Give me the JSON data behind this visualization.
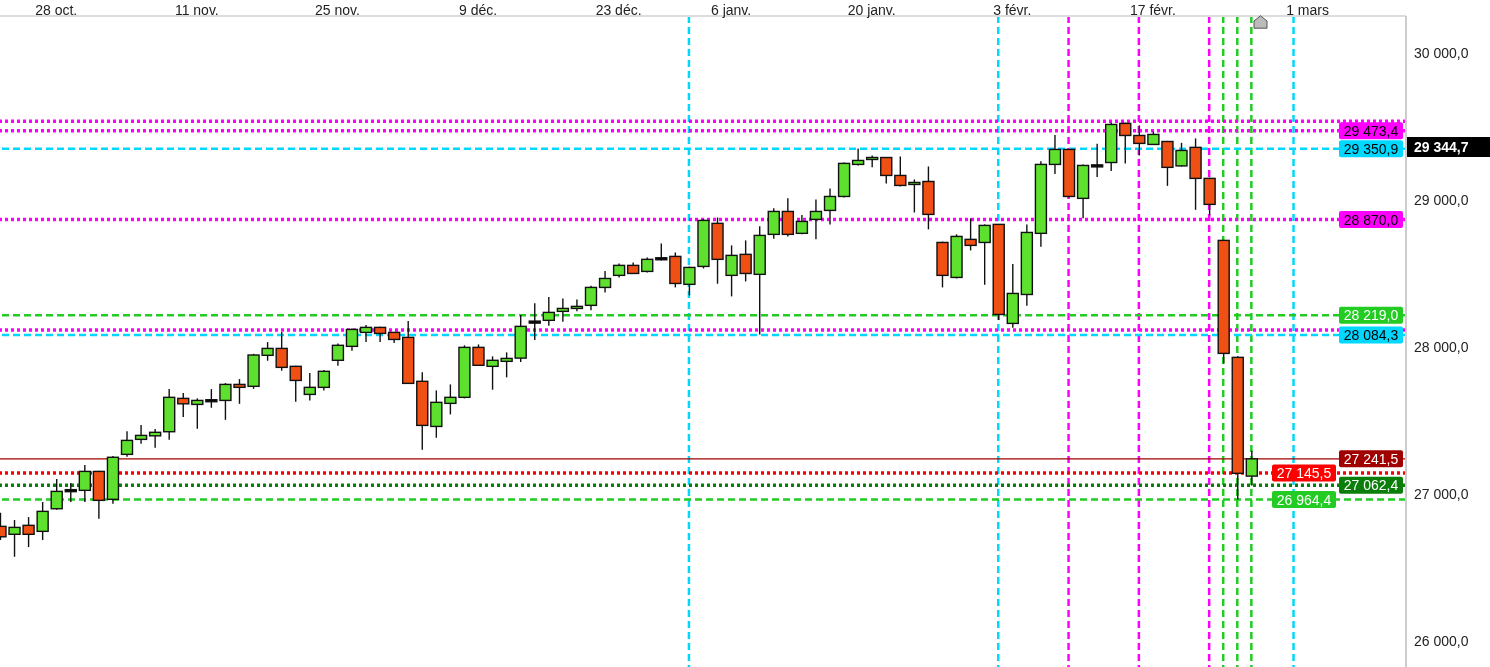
{
  "chart_data": {
    "type": "candlestick",
    "categories": [
      null,
      null,
      null,
      null,
      "28 oct.",
      null,
      null,
      null,
      null,
      null,
      null,
      null,
      null,
      null,
      "11 nov.",
      null,
      null,
      null,
      null,
      null,
      null,
      null,
      null,
      null,
      "25 nov.",
      null,
      null,
      null,
      null,
      null,
      null,
      null,
      null,
      null,
      "9 déc.",
      null,
      null,
      null,
      null,
      null,
      null,
      null,
      null,
      null,
      "23 déc.",
      null,
      null,
      null,
      null,
      null,
      null,
      null,
      "6 janv.",
      null,
      null,
      null,
      null,
      null,
      null,
      null,
      null,
      null,
      "20 janv.",
      null,
      null,
      null,
      null,
      null,
      null,
      null,
      null,
      null,
      "3 févr.",
      null,
      null,
      null,
      null,
      null,
      null,
      null,
      null,
      null,
      "17 févr.",
      null,
      null,
      null,
      null,
      null,
      null,
      null,
      null,
      null,
      null,
      "1 mars",
      null,
      null,
      null,
      null,
      null,
      null,
      null
    ],
    "ohlc": [
      [
        26782,
        26875,
        26690,
        26711
      ],
      [
        26728,
        26825,
        26575,
        26775
      ],
      [
        26789,
        26845,
        26641,
        26728
      ],
      [
        26748,
        26948,
        26689,
        26884
      ],
      [
        26902,
        27104,
        26895,
        27020
      ],
      [
        27025,
        27077,
        26948,
        27025
      ],
      [
        27027,
        27199,
        26948,
        27156
      ],
      [
        27156,
        27160,
        26834,
        26959
      ],
      [
        26966,
        27260,
        26936,
        27252
      ],
      [
        27272,
        27430,
        27256,
        27367
      ],
      [
        27374,
        27471,
        27344,
        27401
      ],
      [
        27398,
        27444,
        27317,
        27422
      ],
      [
        27426,
        27716,
        27371,
        27660
      ],
      [
        27653,
        27689,
        27526,
        27616
      ],
      [
        27612,
        27653,
        27446,
        27639
      ],
      [
        27637,
        27716,
        27589,
        27637
      ],
      [
        27639,
        27757,
        27507,
        27748
      ],
      [
        27748,
        27784,
        27616,
        27728
      ],
      [
        27735,
        27956,
        27718,
        27948
      ],
      [
        27946,
        28036,
        27909,
        27993
      ],
      [
        27993,
        28104,
        27841,
        27864
      ],
      [
        27871,
        27875,
        27630,
        27775
      ],
      [
        27680,
        27825,
        27639,
        27728
      ],
      [
        27728,
        27846,
        27707,
        27837
      ],
      [
        27912,
        28027,
        27875,
        28014
      ],
      [
        28007,
        28129,
        27977,
        28122
      ],
      [
        28102,
        28152,
        28036,
        28136
      ],
      [
        28136,
        28140,
        28036,
        28095
      ],
      [
        28102,
        28105,
        28029,
        28054
      ],
      [
        28068,
        28179,
        27750,
        27755
      ],
      [
        27769,
        27830,
        27303,
        27469
      ],
      [
        27462,
        27707,
        27385,
        27626
      ],
      [
        27619,
        27748,
        27544,
        27660
      ],
      [
        27660,
        28014,
        27653,
        28000
      ],
      [
        28000,
        28020,
        27875,
        27878
      ],
      [
        27871,
        27939,
        27712,
        27912
      ],
      [
        27905,
        27966,
        27796,
        27925
      ],
      [
        27927,
        28220,
        27900,
        28143
      ],
      [
        28172,
        28301,
        28050,
        28172
      ],
      [
        28184,
        28342,
        28147,
        28238
      ],
      [
        28245,
        28333,
        28174,
        28265
      ],
      [
        28265,
        28326,
        28245,
        28279
      ],
      [
        28286,
        28419,
        28252,
        28408
      ],
      [
        28408,
        28519,
        28374,
        28469
      ],
      [
        28490,
        28571,
        28476,
        28558
      ],
      [
        28558,
        28578,
        28500,
        28503
      ],
      [
        28517,
        28612,
        28510,
        28599
      ],
      [
        28603,
        28707,
        28592,
        28603
      ],
      [
        28619,
        28646,
        28408,
        28435
      ],
      [
        28429,
        28550,
        28354,
        28544
      ],
      [
        28551,
        28873,
        28537,
        28864
      ],
      [
        28844,
        28884,
        28433,
        28599
      ],
      [
        28490,
        28694,
        28347,
        28626
      ],
      [
        28633,
        28728,
        28449,
        28503
      ],
      [
        28497,
        28825,
        28088,
        28762
      ],
      [
        28769,
        28946,
        28739,
        28925
      ],
      [
        28925,
        29014,
        28755,
        28769
      ],
      [
        28776,
        28900,
        28770,
        28857
      ],
      [
        28871,
        29007,
        28735,
        28925
      ],
      [
        28932,
        29082,
        28837,
        29027
      ],
      [
        29027,
        29258,
        29020,
        29252
      ],
      [
        29245,
        29354,
        29238,
        29272
      ],
      [
        29279,
        29306,
        29225,
        29292
      ],
      [
        29292,
        29295,
        29116,
        29170
      ],
      [
        29170,
        29299,
        29095,
        29102
      ],
      [
        29109,
        29143,
        28918,
        29122
      ],
      [
        29129,
        29231,
        28803,
        28905
      ],
      [
        28714,
        28720,
        28408,
        28490
      ],
      [
        28476,
        28769,
        28469,
        28755
      ],
      [
        28735,
        28878,
        28660,
        28694
      ],
      [
        28714,
        28837,
        28426,
        28830
      ],
      [
        28837,
        28840,
        28186,
        28224
      ],
      [
        28163,
        28567,
        28133,
        28367
      ],
      [
        28360,
        28837,
        28283,
        28782
      ],
      [
        28776,
        29267,
        28684,
        29245
      ],
      [
        29245,
        29446,
        29179,
        29347
      ],
      [
        29347,
        29350,
        29020,
        29027
      ],
      [
        29014,
        29245,
        28878,
        29238
      ],
      [
        29235,
        29385,
        29160,
        29235
      ],
      [
        29258,
        29528,
        29201,
        29517
      ],
      [
        29524,
        29530,
        29252,
        29442
      ],
      [
        29442,
        29510,
        29306,
        29388
      ],
      [
        29381,
        29469,
        29380,
        29449
      ],
      [
        29401,
        29405,
        29099,
        29225
      ],
      [
        29235,
        29392,
        29230,
        29340
      ],
      [
        29361,
        29422,
        28936,
        29150
      ],
      [
        29150,
        29155,
        28898,
        28973
      ],
      [
        28728,
        28730,
        27891,
        27959
      ],
      [
        27932,
        27940,
        26965,
        27143
      ],
      [
        27124,
        27296,
        27060,
        27241.5
      ],
      null,
      null,
      null,
      null,
      null,
      null,
      null,
      null,
      null,
      null,
      null
    ],
    "colors": [
      "#f05014",
      "#5ee12e",
      "#f05014",
      "#5ee12e",
      "#5ee12e",
      "#000000",
      "#5ee12e",
      "#f05014",
      "#5ee12e",
      "#5ee12e",
      "#5ee12e",
      "#5ee12e",
      "#5ee12e",
      "#f05014",
      "#5ee12e",
      "#000000",
      "#5ee12e",
      "#f05014",
      "#5ee12e",
      "#5ee12e",
      "#f05014",
      "#f05014",
      "#5ee12e",
      "#5ee12e",
      "#5ee12e",
      "#5ee12e",
      "#5ee12e",
      "#f05014",
      "#f05014",
      "#f05014",
      "#f05014",
      "#5ee12e",
      "#5ee12e",
      "#5ee12e",
      "#f05014",
      "#5ee12e",
      "#5ee12e",
      "#5ee12e",
      "#000000",
      "#5ee12e",
      "#5ee12e",
      "#5ee12e",
      "#5ee12e",
      "#5ee12e",
      "#5ee12e",
      "#f05014",
      "#5ee12e",
      "#000000",
      "#f05014",
      "#5ee12e",
      "#5ee12e",
      "#f05014",
      "#5ee12e",
      "#f05014",
      "#5ee12e",
      "#5ee12e",
      "#f05014",
      "#5ee12e",
      "#5ee12e",
      "#5ee12e",
      "#5ee12e",
      "#5ee12e",
      "#5ee12e",
      "#f05014",
      "#f05014",
      "#5ee12e",
      "#f05014",
      "#f05014",
      "#5ee12e",
      "#f05014",
      "#5ee12e",
      "#f05014",
      "#5ee12e",
      "#5ee12e",
      "#5ee12e",
      "#5ee12e",
      "#f05014",
      "#5ee12e",
      "#000000",
      "#5ee12e",
      "#f05014",
      "#f05014",
      "#5ee12e",
      "#f05014",
      "#5ee12e",
      "#f05014",
      "#f05014",
      "#f05014",
      "#f05014",
      "#5ee12e",
      null,
      null,
      null,
      null,
      null,
      null,
      null,
      null,
      null,
      null,
      null
    ],
    "ylim": [
      25825,
      30255
    ],
    "yticks": [
      {
        "value": 26000,
        "label": "26 000,0"
      },
      {
        "value": 27000,
        "label": "27 000,0"
      },
      {
        "value": 28000,
        "label": "28 000,0"
      },
      {
        "value": 29000,
        "label": "29 000,0"
      },
      {
        "value": 30000,
        "label": "30 000,0"
      }
    ],
    "ref_lines": [
      {
        "axis": "y",
        "value": 29539,
        "label": null,
        "color": "#ff00ff",
        "line_style": "dotted"
      },
      {
        "axis": "y",
        "value": 29473.4,
        "label": "29 473,4",
        "color": "#ff00ff",
        "line_style": "dotted"
      },
      {
        "axis": "y",
        "value": 29350.9,
        "label": "29 350,9",
        "color": "#00d8ff",
        "line_style": "dashed"
      },
      {
        "axis": "y",
        "value": 28870,
        "label": "28 870,0",
        "color": "#ff00ff",
        "line_style": "dotted"
      },
      {
        "axis": "y",
        "value": 28219,
        "label": "28 219,0",
        "color": "#22cc22",
        "line_style": "dashed"
      },
      {
        "axis": "y",
        "value": 28118,
        "label": null,
        "color": "#ff00ff",
        "line_style": "dotted"
      },
      {
        "axis": "y",
        "value": 28084.3,
        "label": "28 084,3",
        "color": "#00d8ff",
        "line_style": "dashed"
      },
      {
        "axis": "y",
        "value": 27241.5,
        "label": "27 241,5",
        "color": "#a00000",
        "line_style": "solid"
      },
      {
        "axis": "y",
        "value": 27145.5,
        "label": "27 145,5",
        "color": "#ff0000",
        "line_style": "dotted"
      },
      {
        "axis": "y",
        "value": 27062.4,
        "label": "27 062,4",
        "color": "#0a7d0a",
        "line_style": "dotted"
      },
      {
        "axis": "y",
        "value": 26964.4,
        "label": "26 964,4",
        "color": "#22cc22",
        "line_style": "dashed"
      }
    ],
    "annotations": [
      "29 344,7"
    ]
  }
}
